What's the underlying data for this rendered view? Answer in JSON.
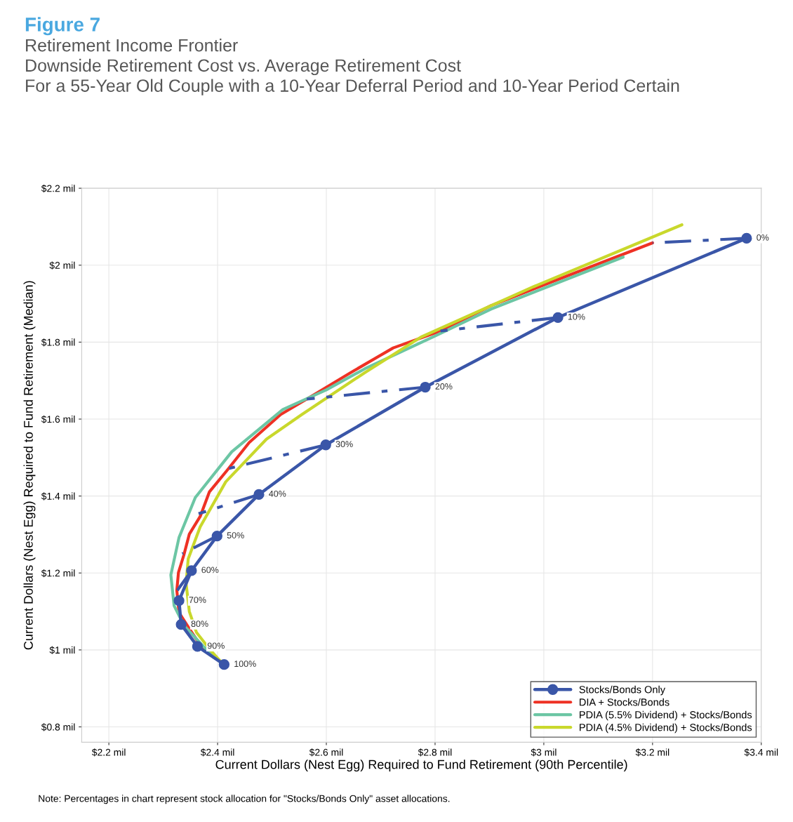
{
  "chart_data": {
    "type": "line",
    "title": "Figure 7",
    "subtitle": "Retirement Income Frontier\nDownside Retirement Cost vs. Average Retirement Cost\nFor a 55-Year Old Couple with a 10-Year Deferral Period and 10-Year Period Certain",
    "xlabel": "Current Dollars (Nest Egg) Required to Fund Retirement (90th Percentile)",
    "ylabel": "Current Dollars (Nest Egg) Required to Fund Retirement (Median)",
    "series": [
      {
        "name": "Stocks/Bonds Only",
        "color": "#3a56a8",
        "marker": "circle",
        "line_style": "solid",
        "x": [
          3.373,
          3.026,
          2.782,
          2.599,
          2.476,
          2.399,
          2.352,
          2.329,
          2.333,
          2.363,
          2.412
        ],
        "values": [
          2.07,
          1.864,
          1.683,
          1.533,
          1.404,
          1.296,
          1.206,
          1.128,
          1.066,
          1.009,
          0.962
        ]
      },
      {
        "name": "DIA + Stocks/Bonds",
        "color": "#ee3124",
        "marker": "none",
        "line_style": "solid",
        "x": [
          2.412,
          2.368,
          2.348,
          2.329,
          2.325,
          2.328,
          2.338,
          2.348,
          2.368,
          2.385,
          2.417,
          2.458,
          2.516,
          2.564,
          2.645,
          2.723,
          2.81,
          2.903,
          3.019,
          3.2
        ],
        "values": [
          0.962,
          1.013,
          1.055,
          1.097,
          1.155,
          1.201,
          1.247,
          1.301,
          1.347,
          1.411,
          1.466,
          1.539,
          1.612,
          1.652,
          1.721,
          1.785,
          1.829,
          1.895,
          1.959,
          2.058
        ]
      },
      {
        "name": "PDIA (5.5% Dividend) + Stocks/Bonds",
        "color": "#6cc6a4",
        "marker": "none",
        "line_style": "solid",
        "x": [
          2.41,
          2.374,
          2.338,
          2.32,
          2.314,
          2.329,
          2.359,
          2.426,
          2.52,
          2.6,
          2.671,
          2.8,
          2.903,
          3.146
        ],
        "values": [
          0.963,
          1.009,
          1.064,
          1.115,
          1.195,
          1.292,
          1.396,
          1.515,
          1.625,
          1.676,
          1.731,
          1.816,
          1.886,
          2.021
        ]
      },
      {
        "name": "PDIA (4.5% Dividend) + Stocks/Bonds",
        "color": "#c9d82c",
        "marker": "none",
        "line_style": "solid",
        "x": [
          2.41,
          2.387,
          2.361,
          2.348,
          2.342,
          2.346,
          2.368,
          2.415,
          2.49,
          2.555,
          2.671,
          2.774,
          2.981,
          3.254
        ],
        "values": [
          0.963,
          0.999,
          1.046,
          1.1,
          1.173,
          1.237,
          1.32,
          1.437,
          1.548,
          1.612,
          1.721,
          1.813,
          1.944,
          2.105
        ]
      },
      {
        "color": "#3a56a8",
        "marker": "none",
        "line_style": "dashed",
        "x": [
          3.373,
          3.2,
          null,
          3.026,
          2.81,
          null,
          2.782,
          2.564,
          null,
          2.599,
          2.413,
          null,
          2.476,
          2.365,
          null,
          2.399,
          2.335,
          null,
          2.352,
          2.326
        ],
        "values": [
          2.07,
          2.058,
          null,
          1.864,
          1.829,
          null,
          1.683,
          1.652,
          null,
          1.533,
          1.469,
          null,
          1.404,
          1.354,
          null,
          1.296,
          1.25,
          null,
          1.206,
          1.155
        ]
      }
    ],
    "xlim": [
      2.15,
      3.4
    ],
    "ylim": [
      0.76,
      2.2
    ],
    "xticks": [
      {
        "value": 2.2,
        "label": "$2.2 mil"
      },
      {
        "value": 2.4,
        "label": "$2.4 mil"
      },
      {
        "value": 2.6,
        "label": "$2.6 mil"
      },
      {
        "value": 2.8,
        "label": "$2.8 mil"
      },
      {
        "value": 3.0,
        "label": "$3 mil"
      },
      {
        "value": 3.2,
        "label": "$3.2 mil"
      },
      {
        "value": 3.4,
        "label": "$3.4 mil"
      }
    ],
    "yticks": [
      {
        "value": 0.8,
        "label": "$0.8 mil"
      },
      {
        "value": 1.0,
        "label": "$1 mil"
      },
      {
        "value": 1.2,
        "label": "$1.2 mil"
      },
      {
        "value": 1.4,
        "label": "$1.4 mil"
      },
      {
        "value": 1.6,
        "label": "$1.6 mil"
      },
      {
        "value": 1.8,
        "label": "$1.8 mil"
      },
      {
        "value": 2.0,
        "label": "$2 mil"
      },
      {
        "value": 2.2,
        "label": "$2.2 mil"
      }
    ],
    "grid": true,
    "legend": "bottom right",
    "annotations": [
      {
        "text": "0%",
        "x": 3.373,
        "y": 2.07
      },
      {
        "text": "10%",
        "x": 3.026,
        "y": 1.864
      },
      {
        "text": "20%",
        "x": 2.782,
        "y": 1.683
      },
      {
        "text": "30%",
        "x": 2.599,
        "y": 1.533
      },
      {
        "text": "40%",
        "x": 2.476,
        "y": 1.404
      },
      {
        "text": "50%",
        "x": 2.399,
        "y": 1.296
      },
      {
        "text": "60%",
        "x": 2.352,
        "y": 1.206
      },
      {
        "text": "70%",
        "x": 2.329,
        "y": 1.128
      },
      {
        "text": "80%",
        "x": 2.333,
        "y": 1.066
      },
      {
        "text": "90%",
        "x": 2.363,
        "y": 1.009
      },
      {
        "text": "100%",
        "x": 2.412,
        "y": 0.962
      },
      "Note: Percentages in chart represent stock allocation for \"Stocks/Bonds Only\" asset allocations."
    ]
  }
}
